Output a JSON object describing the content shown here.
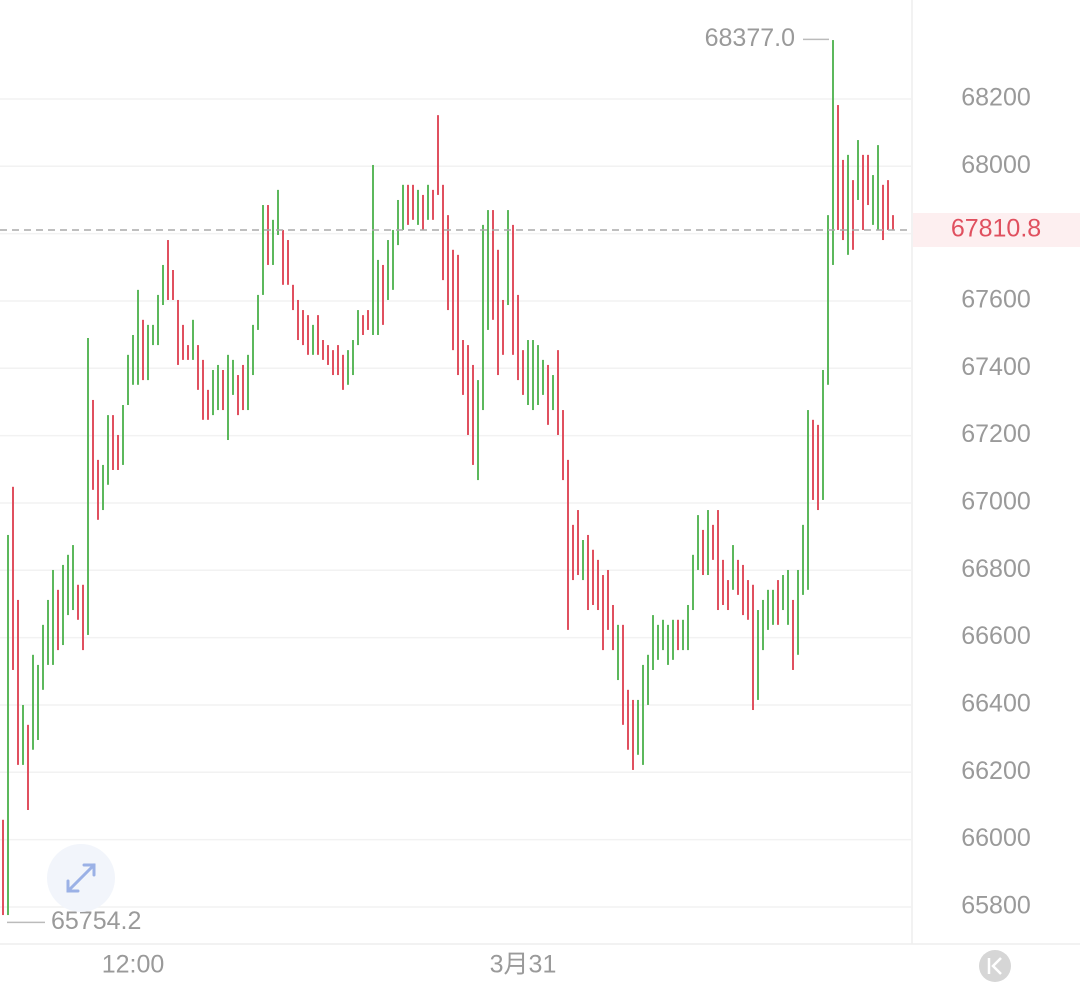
{
  "chart_data": {
    "type": "candlestick",
    "open": [
      66059,
      65776,
      67048,
      66712,
      66222,
      66341,
      66267,
      66296,
      66445,
      66519,
      66519,
      66742,
      66578,
      66667,
      66682,
      66757,
      66757,
      66608,
      67306,
      67128,
      66979,
      67054,
      67261,
      67202,
      67113,
      67291,
      67351,
      67351,
      67544,
      67365,
      67469,
      67469,
      67588,
      67781,
      67692,
      67603,
      67529,
      67469,
      67425,
      67469,
      67425,
      67336,
      67261,
      67276,
      67395,
      67187,
      67321,
      67380,
      67410,
      67276,
      67380,
      67514,
      67618,
      67885,
      67707,
      67796,
      67811,
      67781,
      67648,
      67603,
      67573,
      67558,
      67440,
      67558,
      67484,
      67469,
      67454,
      67469,
      67440,
      67351,
      67380,
      67469,
      67558,
      67573,
      67499,
      67499,
      67707,
      67603,
      67633,
      67766,
      67811,
      67945,
      67945,
      67826,
      67915,
      67841,
      67930,
      68152,
      67945,
      67855,
      67752,
      67737,
      67484,
      67469,
      67410,
      67068,
      67276,
      67514,
      67870,
      67752,
      67603,
      67588,
      67826,
      67618,
      67454,
      67291,
      67276,
      67291,
      67321,
      67410,
      67276,
      67454,
      67276,
      67128,
      66935,
      66979,
      66771,
      66905,
      66861,
      66831,
      66786,
      66801,
      66697,
      66474,
      66638,
      66445,
      66415,
      66252,
      66222,
      66400,
      66504,
      66534,
      66563,
      66519,
      66534,
      66653,
      66563,
      66563,
      66682,
      66801,
      66920,
      66786,
      66935,
      66979,
      66831,
      66771,
      66742,
      66831,
      66816,
      66771,
      66757,
      66415,
      66563,
      66623,
      66638,
      66771,
      66682,
      66638,
      66712,
      66549,
      66727,
      66742,
      67247,
      67232,
      67009,
      67351,
      67707,
      68182,
      68019,
      67737,
      67959,
      67900,
      68034,
      68034,
      67826,
      67811,
      67945,
      67959,
      67855
    ],
    "close": [
      65776,
      66905,
      66504,
      66222,
      66400,
      66088,
      66549,
      66519,
      66638,
      66712,
      66801,
      66563,
      66816,
      66846,
      66875,
      66653,
      66563,
      67490,
      67039,
      66950,
      67113,
      67261,
      67098,
      67098,
      67291,
      67440,
      67499,
      67633,
      67365,
      67529,
      67529,
      67618,
      67707,
      67603,
      67603,
      67410,
      67425,
      67425,
      67544,
      67336,
      67247,
      67247,
      67395,
      67410,
      67276,
      67440,
      67425,
      67261,
      67276,
      67440,
      67529,
      67618,
      67885,
      67707,
      67841,
      67930,
      67648,
      67648,
      67573,
      67484,
      67469,
      67440,
      67529,
      67440,
      67425,
      67410,
      67380,
      67380,
      67336,
      67454,
      67484,
      67573,
      67499,
      67514,
      68004,
      67722,
      67529,
      67781,
      67811,
      67900,
      67945,
      67826,
      67841,
      67930,
      67811,
      67945,
      67841,
      67915,
      67662,
      67573,
      67454,
      67380,
      67321,
      67202,
      67113,
      67365,
      67826,
      67870,
      67544,
      67380,
      67440,
      67870,
      67440,
      67365,
      67321,
      67484,
      67484,
      67469,
      67425,
      67232,
      67380,
      67202,
      67068,
      66623,
      66771,
      66786,
      66890,
      66682,
      66697,
      66682,
      66563,
      66623,
      66563,
      66638,
      66341,
      66267,
      66207,
      66415,
      66519,
      66549,
      66667,
      66638,
      66653,
      66638,
      66653,
      66563,
      66653,
      66697,
      66846,
      66964,
      66786,
      66979,
      66831,
      66682,
      66697,
      66682,
      66875,
      66727,
      66667,
      66653,
      66385,
      66682,
      66712,
      66742,
      66742,
      66638,
      66786,
      66801,
      66504,
      66801,
      66935,
      67276,
      67009,
      66979,
      67395,
      67855,
      68375,
      67811,
      67781,
      68034,
      67752,
      68078,
      67811,
      67885,
      67974,
      68063,
      67781,
      67811,
      67810.8
    ],
    "up_color": "#5cb85c",
    "down_color": "#e0505f",
    "ylim": [
      65690,
      68494
    ],
    "yticks": [
      65800,
      66000,
      66200,
      66400,
      66600,
      66800,
      67000,
      67200,
      67400,
      67600,
      67800,
      68000,
      68200
    ],
    "xticks": [
      {
        "value": 26,
        "label": "12:00"
      },
      {
        "value": 104,
        "label": "3月31"
      }
    ],
    "max": {
      "value": 68377,
      "label": "68377.0"
    },
    "min": 65754.2,
    "last": 67810.8,
    "grid": true
  }
}
